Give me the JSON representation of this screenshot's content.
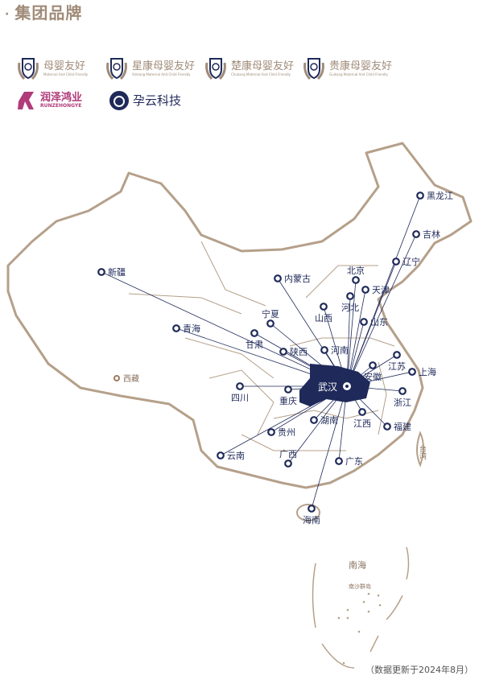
{
  "header": {
    "title": "集团品牌",
    "bullet": "·"
  },
  "brands": [
    {
      "name": "母婴友好",
      "sub": "Maternal And Child Friendly"
    },
    {
      "name": "星康母婴友好",
      "sub": "Xinkang Maternal And Child Friendly"
    },
    {
      "name": "楚康母婴友好",
      "sub": "Chukang Maternal And Child Friendly"
    },
    {
      "name": "贵康母婴友好",
      "sub": "Guikang Maternal And Child Friendly"
    },
    {
      "name": "润泽鸿业",
      "sub": "RUNZEHONGYE"
    },
    {
      "name": "孕云科技",
      "sub": ""
    }
  ],
  "map": {
    "hub": "武汉",
    "provinces_connected": [
      "黑龙江",
      "吉林",
      "辽宁",
      "北京",
      "天津",
      "河北",
      "内蒙古",
      "山西",
      "山东",
      "宁夏",
      "甘肃",
      "陕西",
      "河南",
      "江苏",
      "安徽",
      "上海",
      "新疆",
      "青海",
      "四川",
      "重庆",
      "浙江",
      "江西",
      "福建",
      "湖南",
      "贵州",
      "云南",
      "广西",
      "广东",
      "海南"
    ],
    "provinces_other": [
      "西藏",
      "台湾"
    ],
    "sea_labels": [
      "南海",
      "南沙群岛"
    ],
    "colors": {
      "hub": "#1f2a5a",
      "marker": "#1f2a5a",
      "border": "#b5a08a",
      "title": "#a08b78",
      "line": "#1f2a5a"
    }
  },
  "footer": {
    "note": "（数据更新于2024年8月）"
  }
}
